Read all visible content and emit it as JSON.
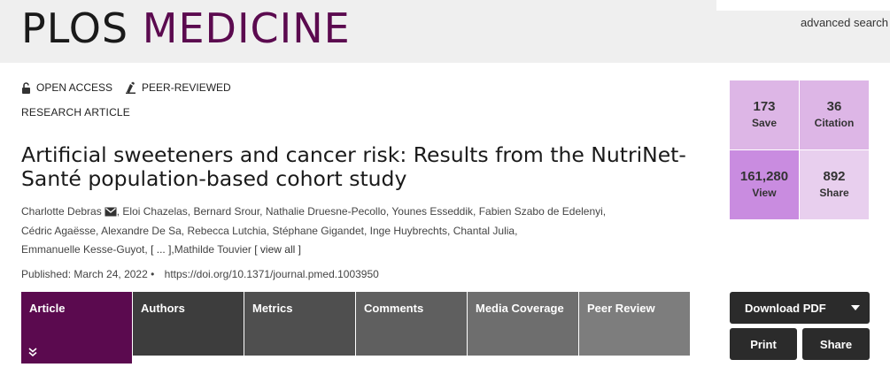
{
  "header": {
    "logo_plos": "PLOS",
    "logo_medicine": "MEDICINE",
    "advanced_search": "advanced search"
  },
  "badges": {
    "open_access": "OPEN ACCESS",
    "peer_reviewed": "PEER-REVIEWED"
  },
  "article": {
    "type": "RESEARCH ARTICLE",
    "title": "Artificial sweeteners and cancer risk: Results from the NutriNet-Santé population-based cohort study",
    "authors": [
      "Charlotte Debras",
      "Eloi Chazelas,",
      "Bernard Srour,",
      "Nathalie Druesne-Pecollo,",
      "Younes Esseddik,",
      "Fabien Szabo de Edelenyi,",
      "Cédric Agaësse,",
      "Alexandre De Sa,",
      "Rebecca Lutchia,",
      "Stéphane Gigandet,",
      "Inge Huybrechts,",
      "Chantal Julia,",
      "Emmanuelle Kesse-Guyot,"
    ],
    "authors_ellipsis": "[ ... ],",
    "last_author": "Mathilde Touvier",
    "view_all": "[ view all ]",
    "published": "Published: March 24, 2022",
    "doi": "https://doi.org/10.1371/journal.pmed.1003950"
  },
  "tabs": [
    "Article",
    "Authors",
    "Metrics",
    "Comments",
    "Media Coverage",
    "Peer Review"
  ],
  "metrics": {
    "save_count": "173",
    "save_label": "Save",
    "citation_count": "36",
    "citation_label": "Citation",
    "view_count": "161,280",
    "view_label": "View",
    "share_count": "892",
    "share_label": "Share"
  },
  "actions": {
    "download_pdf": "Download PDF",
    "print": "Print",
    "share": "Share"
  },
  "colors": {
    "brand": "#5b0a4f",
    "header_bg": "#efefef"
  }
}
